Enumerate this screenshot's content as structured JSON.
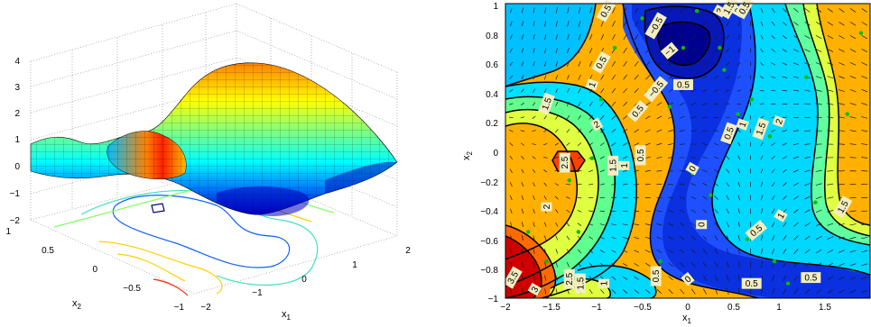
{
  "colors": {
    "surface_colormap": [
      "#00008f",
      "#0000ff",
      "#0080ff",
      "#00ffff",
      "#80ff80",
      "#ffff00",
      "#ff8000",
      "#ff0000",
      "#800000"
    ],
    "contour_line_dark": "#000000",
    "quiver": "#1a1a1a",
    "seed_points": "#00c000",
    "label_background": "#f3eec2"
  },
  "chart_data": [
    {
      "type": "surface",
      "description_of_function": "bumpy surface z(x1,x2) over x1∈[-2,2], x2∈[-1,1] with mesh grid and projected contour lines on floor",
      "xlabel": "x",
      "xlabel_sub": "1",
      "ylabel": "x",
      "ylabel_sub": "2",
      "x_ticks": [
        "−2",
        "−1",
        "0",
        "1",
        "2"
      ],
      "y_ticks": [
        "−1",
        "−0.5",
        "0",
        "0.5",
        "1"
      ],
      "z_ticks": [
        "−2",
        "−1",
        "0",
        "1",
        "2",
        "3",
        "4"
      ],
      "xlim": [
        -2,
        2
      ],
      "ylim": [
        -1,
        1
      ],
      "zlim": [
        -2,
        4
      ],
      "grid": true
    },
    {
      "type": "contour",
      "filled": true,
      "quiver": true,
      "xlabel": "x",
      "xlabel_sub": "1",
      "ylabel": "x",
      "ylabel_sub": "2",
      "x_ticks": [
        "−2",
        "−1.5",
        "−1",
        "−0.5",
        "0",
        "0.5",
        "1",
        "1.5"
      ],
      "y_ticks": [
        "−1",
        "−0.8",
        "−0.6",
        "−0.4",
        "−0.2",
        "0",
        "0.2",
        "0.4",
        "0.6",
        "0.8",
        "1"
      ],
      "xlim": [
        -2,
        2
      ],
      "ylim": [
        -1,
        1
      ],
      "contour_levels": [
        -1,
        -0.5,
        0,
        0.5,
        1,
        1.5,
        2,
        2.5,
        3,
        3.5
      ],
      "contour_labels": [
        {
          "text": "0.5"
        },
        {
          "text": "−0.5"
        },
        {
          "text": "−1"
        },
        {
          "text": "0.5"
        },
        {
          "text": "1.5"
        },
        {
          "text": "1"
        },
        {
          "text": "0.5"
        },
        {
          "text": "−0.5"
        },
        {
          "text": "0.5"
        },
        {
          "text": "2"
        },
        {
          "text": "2.5"
        },
        {
          "text": "1.5"
        },
        {
          "text": "1"
        },
        {
          "text": "0.5"
        },
        {
          "text": "0"
        },
        {
          "text": "0.5"
        },
        {
          "text": "1"
        },
        {
          "text": "1.5"
        },
        {
          "text": "2"
        },
        {
          "text": "2"
        },
        {
          "text": "1.5"
        },
        {
          "text": "0"
        },
        {
          "text": "1"
        },
        {
          "text": "0.5"
        },
        {
          "text": "1.5"
        },
        {
          "text": "0.5"
        },
        {
          "text": "0"
        },
        {
          "text": "0.5"
        },
        {
          "text": "3.5"
        },
        {
          "text": "3"
        },
        {
          "text": "2.5"
        },
        {
          "text": "2"
        },
        {
          "text": "1.5"
        },
        {
          "text": "1"
        },
        {
          "text": "0.5"
        },
        {
          "text": "0"
        },
        {
          "text": "0.5"
        }
      ]
    }
  ]
}
